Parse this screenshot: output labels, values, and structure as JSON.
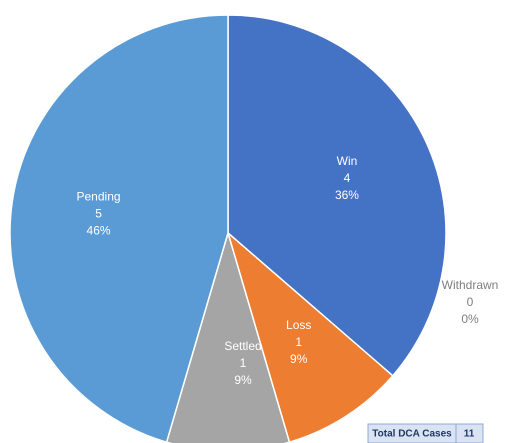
{
  "chart_data": {
    "type": "pie",
    "categories": [
      "Win",
      "Loss",
      "Withdrawn",
      "Settled",
      "Pending"
    ],
    "values": [
      4,
      1,
      0,
      1,
      5
    ],
    "percent_labels": [
      "36%",
      "9%",
      "0%",
      "9%",
      "46%"
    ],
    "colors": [
      "#4472c4",
      "#ed7d31",
      "#ffc000",
      "#a5a5a5",
      "#5b9bd5"
    ],
    "total": {
      "label": "Total DCA Cases",
      "value": 11
    }
  }
}
